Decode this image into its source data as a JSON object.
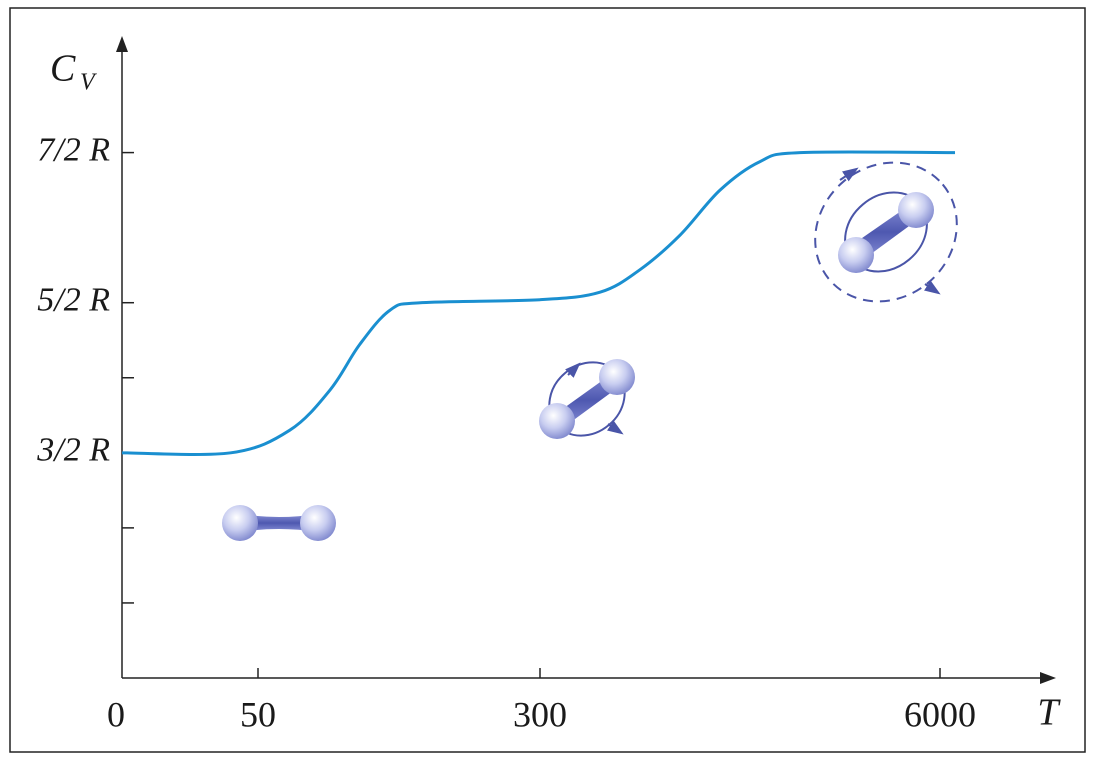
{
  "chart_data": {
    "type": "line",
    "ylabel": "C",
    "ylabel_sub": "V",
    "xlabel": "T",
    "x": [
      0,
      40,
      78,
      114,
      140,
      167,
      194,
      300,
      1155,
      1725,
      2295,
      2865,
      3435,
      4005,
      6214
    ],
    "series": [
      {
        "color": "#1a8fd0",
        "values": [
          1.5,
          1.5,
          1.65,
          1.92,
          2.22,
          2.45,
          2.5,
          2.52,
          2.57,
          2.72,
          2.95,
          3.25,
          3.44,
          3.5,
          3.5
        ]
      }
    ],
    "xlim": [
      0,
      7500
    ],
    "xticks": [
      0,
      50,
      300,
      6000
    ],
    "ylim": [
      0,
      4.25
    ],
    "yticks": [
      {
        "value": 3.5,
        "label": "7/2 R"
      },
      {
        "value": 2.5,
        "label": "5/2 R"
      },
      {
        "value": 1.5,
        "label": "3/2 R"
      }
    ],
    "yminor_ticks": [
      2,
      1,
      0.5
    ]
  }
}
